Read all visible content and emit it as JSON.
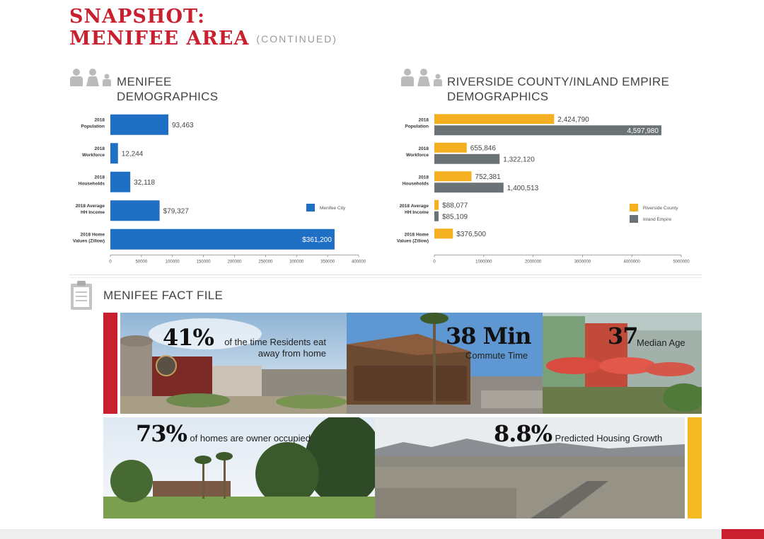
{
  "header": {
    "title_line1": "SNAPSHOT:",
    "title_line2": "MENIFEE AREA",
    "continued": "(CONTINUED)"
  },
  "left_section": {
    "title_line1": "MENIFEE",
    "title_line2": "DEMOGRAPHICS"
  },
  "right_section": {
    "title_line1": "RIVERSIDE COUNTY/INLAND EMPIRE",
    "title_line2": "DEMOGRAPHICS"
  },
  "colors": {
    "brand_red": "#c8202f",
    "menifee_blue": "#1f6fc5",
    "riverside_yellow": "#f5b021",
    "inland_gray": "#6b7275",
    "accent_yellow": "#f5b921"
  },
  "chart_data": [
    {
      "type": "bar",
      "orientation": "horizontal",
      "categories": [
        "2018 Population",
        "2018 Workforce",
        "2018 Households",
        "2018 Average HH Income",
        "2018 Home Values (Zillow)"
      ],
      "series": [
        {
          "name": "Menifee City",
          "values": [
            93463,
            12244,
            32118,
            79327,
            361200
          ],
          "labels": [
            "93,463",
            "12,244",
            "32,118",
            "$79,327",
            "$361,200"
          ]
        }
      ],
      "xlim": [
        0,
        400000
      ],
      "xticks": [
        0,
        50000,
        100000,
        150000,
        200000,
        250000,
        300000,
        350000,
        400000
      ],
      "legend": "right",
      "grid": false
    },
    {
      "type": "bar",
      "orientation": "horizontal",
      "categories": [
        "2018 Population",
        "2018 Workforce",
        "2018 Households",
        "2018 Average HH Income",
        "2018 Home Values (Zillow)"
      ],
      "series": [
        {
          "name": "Riverside County",
          "values": [
            2424790,
            655846,
            752381,
            88077,
            376500
          ],
          "labels": [
            "2,424,790",
            "655,846",
            "752,381",
            "$88,077",
            "$376,500"
          ]
        },
        {
          "name": "Inland Empire",
          "values": [
            4597980,
            1322120,
            1400513,
            85109,
            null
          ],
          "labels": [
            "4,597,980",
            "1,322,120",
            "1,400,513",
            "$85,109",
            ""
          ]
        }
      ],
      "xlim": [
        0,
        5000000
      ],
      "xticks": [
        0,
        1000000,
        2000000,
        3000000,
        4000000,
        5000000
      ],
      "legend": "right",
      "grid": false
    }
  ],
  "fact_file": {
    "title": "MENIFEE FACT FILE",
    "facts": [
      {
        "big": "41%",
        "small": "of the time Residents eat away from home"
      },
      {
        "big": "38 Min",
        "small": "Commute Time"
      },
      {
        "big": "37",
        "small": "Median Age"
      },
      {
        "big": "73%",
        "small": "of homes are owner occupied"
      },
      {
        "big": "8.8%",
        "small": "Predicted Housing Growth"
      }
    ]
  }
}
